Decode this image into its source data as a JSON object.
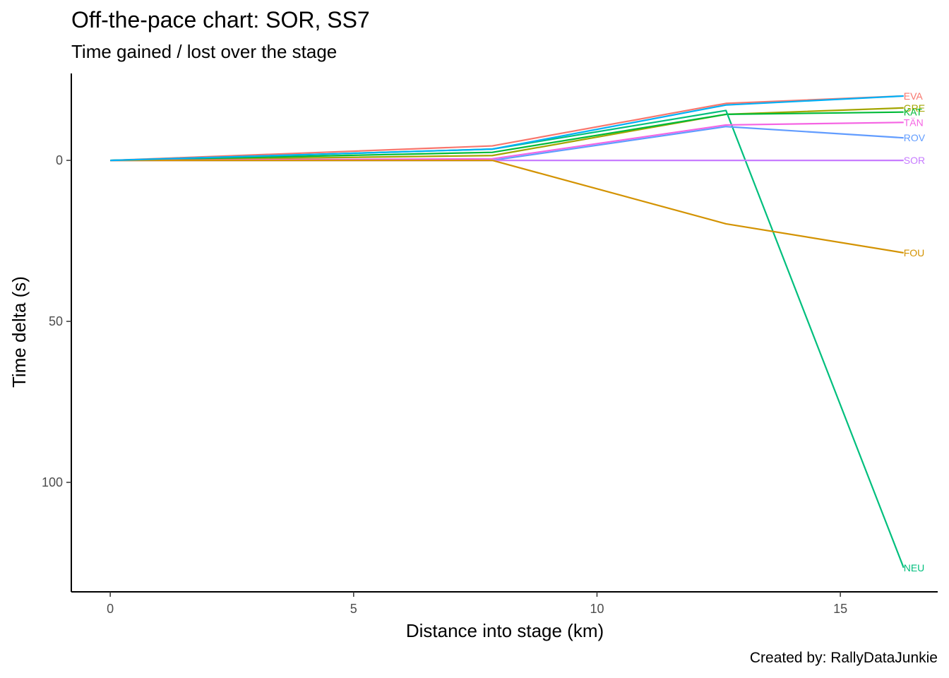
{
  "chart_data": {
    "type": "line",
    "title": "Off-the-pace chart: SOR, SS7",
    "subtitle": "Time gained / lost over the stage",
    "xlabel": "Distance into stage (km)",
    "ylabel": "Time delta (s)",
    "caption": "Created by: RallyDataJunkie",
    "xlim": [
      -0.8,
      17
    ],
    "ylim": [
      -27,
      134
    ],
    "y_reversed": true,
    "x_ticks": [
      0,
      5,
      10,
      15
    ],
    "y_ticks": [
      0,
      50,
      100
    ],
    "x": [
      0,
      7.85,
      12.65,
      16.3
    ],
    "grid": false,
    "legend": "none (series labelled at line ends)",
    "series": [
      {
        "name": "EVA",
        "color": "#F8766D",
        "values": [
          0,
          -4.5,
          -17.7,
          -20
        ]
      },
      {
        "name": "GRE",
        "color": "#A3A500",
        "values": [
          0,
          -1.5,
          -14.3,
          -16.3
        ]
      },
      {
        "name": "KAT",
        "color": "#00BA38",
        "values": [
          0,
          -2.5,
          -14.3,
          -15
        ]
      },
      {
        "name": "NEU",
        "color": "#00BF7D",
        "values": [
          0,
          -3.5,
          -15.5,
          126.5
        ]
      },
      {
        "name": "TÄN",
        "color": "#F564E3",
        "values": [
          0,
          -0.5,
          -11,
          -11.8
        ]
      },
      {
        "name": "ROV",
        "color": "#619CFF",
        "values": [
          0,
          0,
          -10.5,
          -7
        ]
      },
      {
        "name": "SOR",
        "color": "#C77CFF",
        "values": [
          0,
          0,
          0,
          0
        ]
      },
      {
        "name": "FOU",
        "color": "#D39200",
        "values": [
          0,
          0,
          19.7,
          28.7
        ]
      },
      {
        "name": "",
        "color": "#00B0F6",
        "values": [
          0,
          -3.5,
          -17.2,
          -20
        ]
      }
    ]
  }
}
